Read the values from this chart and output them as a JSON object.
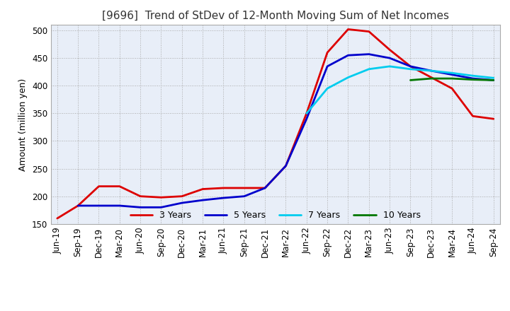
{
  "title": "[9696]  Trend of StDev of 12-Month Moving Sum of Net Incomes",
  "ylabel": "Amount (million yen)",
  "line_colors": {
    "3 Years": "#dd0000",
    "5 Years": "#0000cc",
    "7 Years": "#00ccee",
    "10 Years": "#007700"
  },
  "line_widths": {
    "3 Years": 2.0,
    "5 Years": 2.0,
    "7 Years": 2.0,
    "10 Years": 2.0
  },
  "ylim": [
    150,
    510
  ],
  "yticks": [
    150,
    200,
    250,
    300,
    350,
    400,
    450,
    500
  ],
  "x_labels": [
    "Jun-19",
    "Sep-19",
    "Dec-19",
    "Mar-20",
    "Jun-20",
    "Sep-20",
    "Dec-20",
    "Mar-21",
    "Jun-21",
    "Sep-21",
    "Dec-21",
    "Mar-22",
    "Jun-22",
    "Sep-22",
    "Dec-22",
    "Mar-23",
    "Jun-23",
    "Sep-23",
    "Dec-23",
    "Mar-24",
    "Jun-24",
    "Sep-24"
  ],
  "series": {
    "3 Years": [
      160,
      183,
      218,
      218,
      200,
      198,
      200,
      213,
      215,
      215,
      215,
      255,
      350,
      460,
      502,
      498,
      465,
      435,
      415,
      395,
      345,
      340
    ],
    "5 Years": [
      null,
      183,
      183,
      183,
      180,
      180,
      188,
      193,
      197,
      200,
      215,
      255,
      340,
      435,
      455,
      457,
      450,
      435,
      427,
      420,
      413,
      410
    ],
    "7 Years": [
      null,
      null,
      null,
      null,
      null,
      null,
      null,
      null,
      null,
      null,
      null,
      null,
      350,
      395,
      415,
      430,
      435,
      430,
      427,
      423,
      418,
      414
    ],
    "10 Years": [
      null,
      null,
      null,
      null,
      null,
      null,
      null,
      null,
      null,
      null,
      null,
      null,
      null,
      null,
      null,
      null,
      null,
      410,
      413,
      413,
      411,
      410
    ]
  },
  "title_fontsize": 11,
  "tick_fontsize": 8.5,
  "label_fontsize": 9,
  "legend_fontsize": 9,
  "background_color": "#e8eef8",
  "plot_bg_color": "#e8eef8",
  "grid_color": "#aaaaaa",
  "fig_bg_color": "#ffffff"
}
